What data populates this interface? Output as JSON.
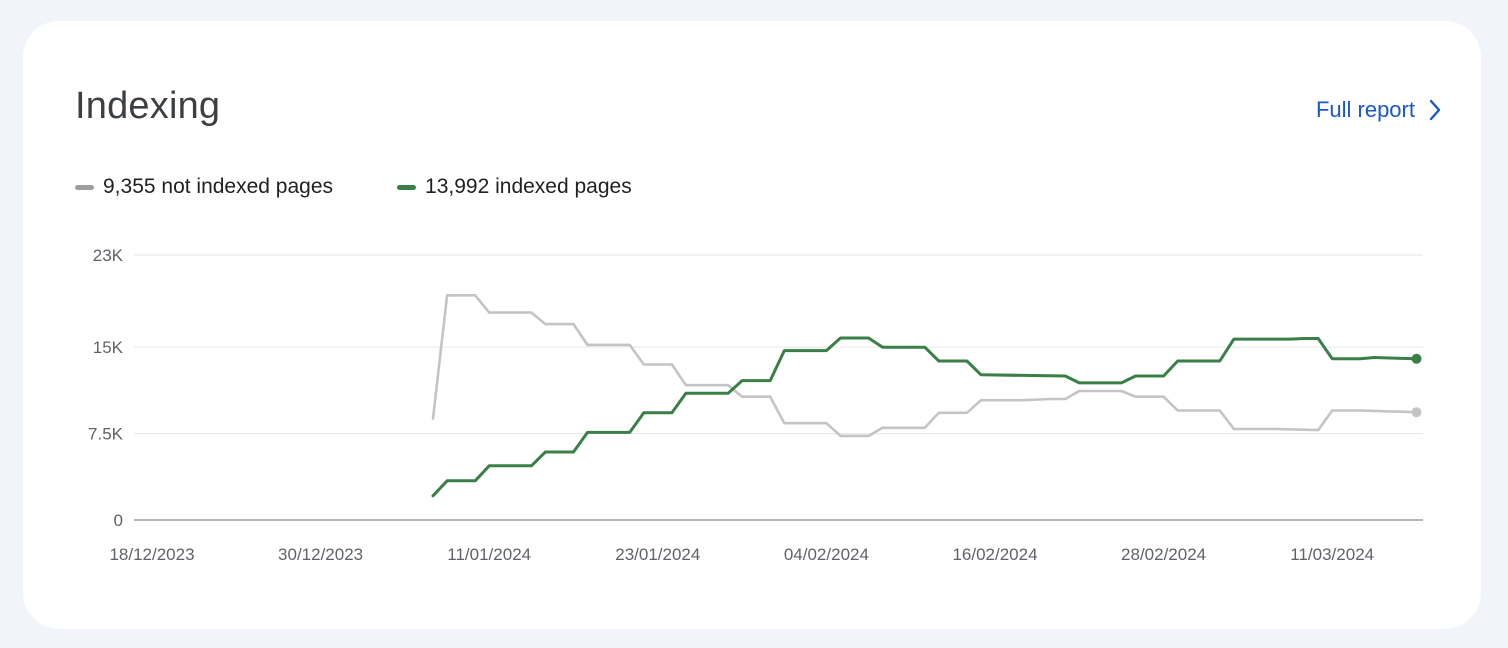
{
  "card": {
    "title": "Indexing",
    "full_report_label": "Full report",
    "chevron_icon": "chevron-right-icon"
  },
  "legend": [
    {
      "label": "9,355 not indexed pages",
      "color": "#9e9e9e"
    },
    {
      "label": "13,992 indexed pages",
      "color": "#3a7f46"
    }
  ],
  "chart_data": {
    "type": "line",
    "x_axis": {
      "type": "date",
      "range": [
        "2023-12-18",
        "2024-03-18"
      ],
      "tick_dates": [
        "2023-12-18",
        "2023-12-30",
        "2024-01-11",
        "2024-01-23",
        "2024-02-04",
        "2024-02-16",
        "2024-02-28",
        "2024-03-11"
      ],
      "tick_labels": [
        "18/12/2023",
        "30/12/2023",
        "11/01/2024",
        "23/01/2024",
        "04/02/2024",
        "16/02/2024",
        "28/02/2024",
        "11/03/2024"
      ]
    },
    "y_axis": {
      "range": [
        0,
        23000
      ],
      "tick_values": [
        0,
        7500,
        15000,
        23000
      ],
      "tick_labels": [
        "0",
        "7.5K",
        "15K",
        "23K"
      ]
    },
    "grid": true,
    "legend_position": "top-left",
    "series": [
      {
        "name": "9,355 not indexed pages",
        "color": "#c4c4c4",
        "points": [
          [
            "2024-01-07",
            8800
          ],
          [
            "2024-01-08",
            19500
          ],
          [
            "2024-01-10",
            19500
          ],
          [
            "2024-01-11",
            18000
          ],
          [
            "2024-01-14",
            18000
          ],
          [
            "2024-01-15",
            17000
          ],
          [
            "2024-01-17",
            17000
          ],
          [
            "2024-01-18",
            15200
          ],
          [
            "2024-01-21",
            15200
          ],
          [
            "2024-01-22",
            13500
          ],
          [
            "2024-01-24",
            13500
          ],
          [
            "2024-01-25",
            11700
          ],
          [
            "2024-01-28",
            11700
          ],
          [
            "2024-01-29",
            10700
          ],
          [
            "2024-01-31",
            10700
          ],
          [
            "2024-02-01",
            8400
          ],
          [
            "2024-02-04",
            8400
          ],
          [
            "2024-02-05",
            7300
          ],
          [
            "2024-02-07",
            7300
          ],
          [
            "2024-02-08",
            8000
          ],
          [
            "2024-02-11",
            8000
          ],
          [
            "2024-02-12",
            9300
          ],
          [
            "2024-02-14",
            9300
          ],
          [
            "2024-02-15",
            10400
          ],
          [
            "2024-02-18",
            10400
          ],
          [
            "2024-02-20",
            10500
          ],
          [
            "2024-02-21",
            10500
          ],
          [
            "2024-02-22",
            11200
          ],
          [
            "2024-02-25",
            11200
          ],
          [
            "2024-02-26",
            10700
          ],
          [
            "2024-02-28",
            10700
          ],
          [
            "2024-02-29",
            9500
          ],
          [
            "2024-03-03",
            9500
          ],
          [
            "2024-03-04",
            7900
          ],
          [
            "2024-03-07",
            7900
          ],
          [
            "2024-03-10",
            7800
          ],
          [
            "2024-03-11",
            9500
          ],
          [
            "2024-03-13",
            9500
          ],
          [
            "2024-03-17",
            9355
          ]
        ]
      },
      {
        "name": "13,992 indexed pages",
        "color": "#3a7f46",
        "points": [
          [
            "2024-01-07",
            2100
          ],
          [
            "2024-01-08",
            3400
          ],
          [
            "2024-01-10",
            3400
          ],
          [
            "2024-01-11",
            4700
          ],
          [
            "2024-01-14",
            4700
          ],
          [
            "2024-01-15",
            5900
          ],
          [
            "2024-01-17",
            5900
          ],
          [
            "2024-01-18",
            7600
          ],
          [
            "2024-01-21",
            7600
          ],
          [
            "2024-01-22",
            9300
          ],
          [
            "2024-01-24",
            9300
          ],
          [
            "2024-01-25",
            11000
          ],
          [
            "2024-01-28",
            11000
          ],
          [
            "2024-01-29",
            12100
          ],
          [
            "2024-01-31",
            12100
          ],
          [
            "2024-02-01",
            14700
          ],
          [
            "2024-02-04",
            14700
          ],
          [
            "2024-02-05",
            15800
          ],
          [
            "2024-02-07",
            15800
          ],
          [
            "2024-02-08",
            15000
          ],
          [
            "2024-02-11",
            15000
          ],
          [
            "2024-02-12",
            13800
          ],
          [
            "2024-02-14",
            13800
          ],
          [
            "2024-02-15",
            12600
          ],
          [
            "2024-02-21",
            12500
          ],
          [
            "2024-02-22",
            11900
          ],
          [
            "2024-02-25",
            11900
          ],
          [
            "2024-02-26",
            12500
          ],
          [
            "2024-02-28",
            12500
          ],
          [
            "2024-02-29",
            13800
          ],
          [
            "2024-03-03",
            13800
          ],
          [
            "2024-03-04",
            15700
          ],
          [
            "2024-03-08",
            15700
          ],
          [
            "2024-03-09",
            15750
          ],
          [
            "2024-03-10",
            15750
          ],
          [
            "2024-03-11",
            14000
          ],
          [
            "2024-03-13",
            14000
          ],
          [
            "2024-03-14",
            14100
          ],
          [
            "2024-03-17",
            13992
          ]
        ]
      }
    ]
  }
}
